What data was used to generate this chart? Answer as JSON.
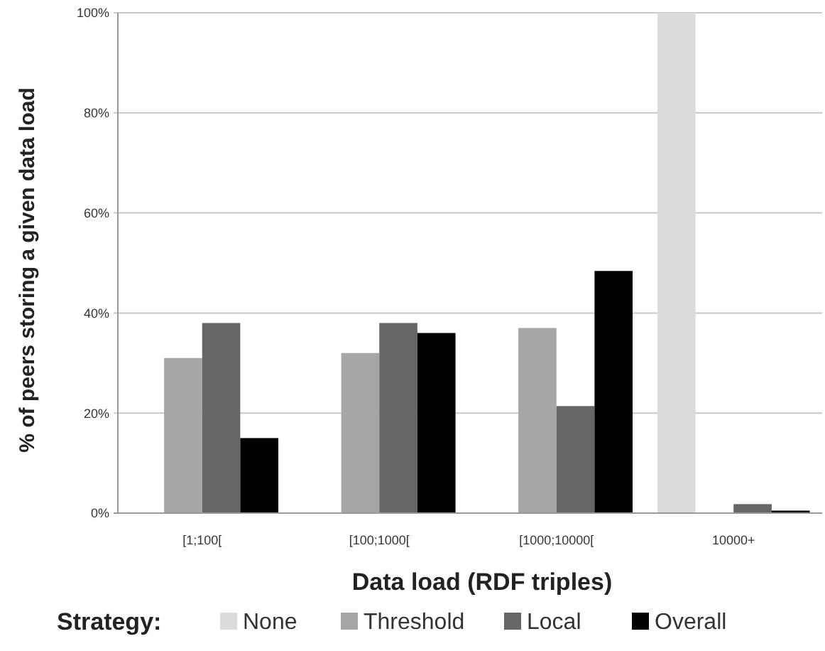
{
  "chart_data": {
    "type": "bar",
    "xlabel": "Data load (RDF triples)",
    "ylabel": "% of peers storing a given data load",
    "legend_title": "Strategy:",
    "categories": [
      "[1;100[",
      "[100;1000[",
      "[1000;10000[",
      "10000+"
    ],
    "series": [
      {
        "name": "None",
        "color": "#dcdcdc",
        "values": [
          0,
          0,
          0,
          100
        ]
      },
      {
        "name": "Threshold",
        "color": "#a6a6a6",
        "values": [
          31,
          32,
          37,
          0
        ]
      },
      {
        "name": "Local",
        "color": "#666666",
        "values": [
          38,
          38,
          21.4,
          1.8
        ]
      },
      {
        "name": "Overall",
        "color": "#000000",
        "values": [
          15,
          36,
          48.4,
          0.5
        ]
      }
    ],
    "ylim": [
      0,
      100
    ],
    "yticks": [
      {
        "value": 0,
        "label": "0%"
      },
      {
        "value": 20,
        "label": "20%"
      },
      {
        "value": 40,
        "label": "40%"
      },
      {
        "value": 60,
        "label": "60%"
      },
      {
        "value": 80,
        "label": "80%"
      },
      {
        "value": 100,
        "label": "100%"
      }
    ],
    "grid": "y",
    "legend": "bottom"
  }
}
